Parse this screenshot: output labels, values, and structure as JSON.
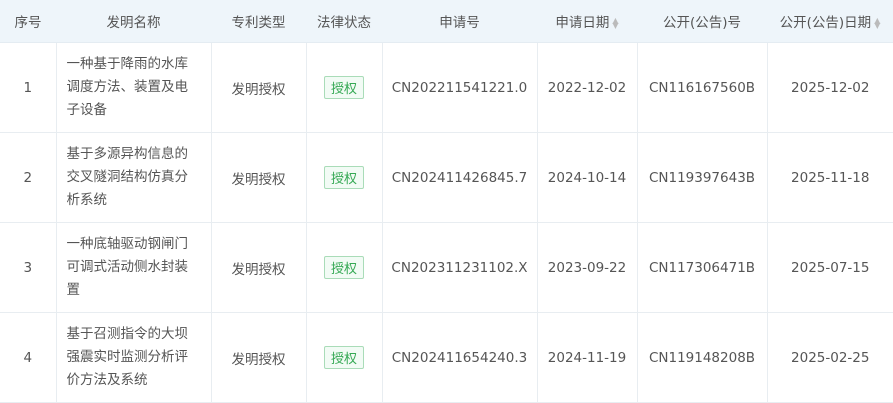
{
  "columns": [
    {
      "label": "序号",
      "sortable": false
    },
    {
      "label": "发明名称",
      "sortable": false
    },
    {
      "label": "专利类型",
      "sortable": false
    },
    {
      "label": "法律状态",
      "sortable": false
    },
    {
      "label": "申请号",
      "sortable": false
    },
    {
      "label": "申请日期",
      "sortable": true
    },
    {
      "label": "公开(公告)号",
      "sortable": false
    },
    {
      "label": "公开(公告)日期",
      "sortable": true
    }
  ],
  "rows": [
    {
      "no": "1",
      "name": "一种基于降雨的水库调度方法、装置及电子设备",
      "type": "发明授权",
      "status": "授权",
      "app_no": "CN202211541221.0",
      "app_date": "2022-12-02",
      "pub_no": "CN116167560B",
      "pub_date": "2025-12-02"
    },
    {
      "no": "2",
      "name": "基于多源异构信息的交叉隧洞结构仿真分析系统",
      "type": "发明授权",
      "status": "授权",
      "app_no": "CN202411426845.7",
      "app_date": "2024-10-14",
      "pub_no": "CN119397643B",
      "pub_date": "2025-11-18"
    },
    {
      "no": "3",
      "name": "一种底轴驱动钢闸门可调式活动侧水封装置",
      "type": "发明授权",
      "status": "授权",
      "app_no": "CN202311231102.X",
      "app_date": "2023-09-22",
      "pub_no": "CN117306471B",
      "pub_date": "2025-07-15"
    },
    {
      "no": "4",
      "name": "基于召测指令的大坝强震实时监测分析评价方法及系统",
      "type": "发明授权",
      "status": "授权",
      "app_no": "CN202411654240.3",
      "app_date": "2024-11-19",
      "pub_no": "CN119148208B",
      "pub_date": "2025-02-25"
    }
  ],
  "colors": {
    "header_bg": "#eef5fa",
    "badge_green": "#34a853"
  }
}
